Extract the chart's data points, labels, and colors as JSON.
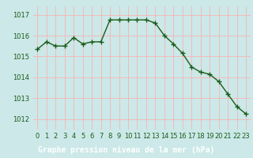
{
  "x": [
    0,
    1,
    2,
    3,
    4,
    5,
    6,
    7,
    8,
    9,
    10,
    11,
    12,
    13,
    14,
    15,
    16,
    17,
    18,
    19,
    20,
    21,
    22,
    23
  ],
  "y": [
    1015.35,
    1015.7,
    1015.5,
    1015.5,
    1015.9,
    1015.6,
    1015.7,
    1015.7,
    1016.75,
    1016.75,
    1016.75,
    1016.75,
    1016.75,
    1016.6,
    1016.0,
    1015.6,
    1015.15,
    1014.5,
    1014.25,
    1014.15,
    1013.8,
    1013.2,
    1012.6,
    1012.25
  ],
  "line_color": "#1a5c1a",
  "marker_color": "#1a5c1a",
  "bg_color": "#cce8e8",
  "plot_bg_color": "#cce8e8",
  "xlabel_bg_color": "#2a6e2a",
  "grid_color": "#ffaaaa",
  "xlabel": "Graphe pression niveau de la mer (hPa)",
  "xlabel_color": "#ffffff",
  "tick_color": "#1a5c1a",
  "ylim": [
    1011.5,
    1017.4
  ],
  "yticks": [
    1012,
    1013,
    1014,
    1015,
    1016,
    1017
  ],
  "xticks": [
    0,
    1,
    2,
    3,
    4,
    5,
    6,
    7,
    8,
    9,
    10,
    11,
    12,
    13,
    14,
    15,
    16,
    17,
    18,
    19,
    20,
    21,
    22,
    23
  ],
  "marker_size": 4,
  "line_width": 1.0,
  "tick_fontsize": 6,
  "xlabel_fontsize": 7
}
